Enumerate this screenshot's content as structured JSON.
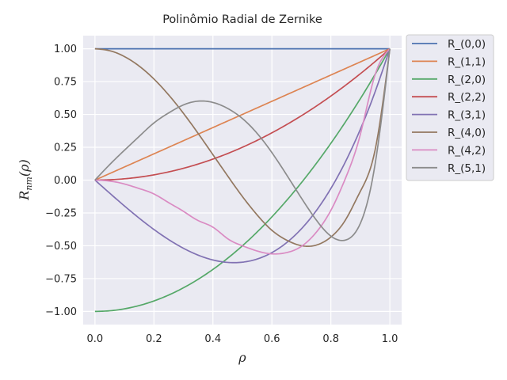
{
  "chart_data": {
    "type": "line",
    "title": "Polinômio Radial de Zernike",
    "xlabel": "ρ",
    "ylabel": "R_nm(ρ)",
    "xlim": [
      -0.04,
      1.04
    ],
    "ylim": [
      -1.1,
      1.1
    ],
    "xticks": [
      0.0,
      0.2,
      0.4,
      0.6,
      0.8,
      1.0
    ],
    "xtick_labels": [
      "0.0",
      "0.2",
      "0.4",
      "0.6",
      "0.8",
      "1.0"
    ],
    "yticks": [
      1.0,
      0.75,
      0.5,
      0.25,
      0.0,
      -0.25,
      -0.5,
      -0.75,
      -1.0
    ],
    "ytick_labels": [
      "1.00",
      "0.75",
      "0.50",
      "0.25",
      "0.00",
      "−0.25",
      "−0.50",
      "−0.75",
      "−1.00"
    ],
    "grid": true,
    "legend_position": "outside-right",
    "background": "#eaeaf2",
    "x": [
      0.0,
      0.05,
      0.1,
      0.15,
      0.2,
      0.25,
      0.3,
      0.35,
      0.4,
      0.45,
      0.5,
      0.55,
      0.6,
      0.65,
      0.7,
      0.75,
      0.8,
      0.85,
      0.9,
      0.95,
      1.0
    ],
    "series": [
      {
        "name": "R_(0,0)",
        "color": "#4c72b0",
        "values": [
          1,
          1,
          1,
          1,
          1,
          1,
          1,
          1,
          1,
          1,
          1,
          1,
          1,
          1,
          1,
          1,
          1,
          1,
          1,
          1,
          1
        ]
      },
      {
        "name": "R_(1,1)",
        "color": "#dd8452",
        "values": [
          0,
          0.05,
          0.1,
          0.15,
          0.2,
          0.25,
          0.3,
          0.35,
          0.4,
          0.45,
          0.5,
          0.55,
          0.6,
          0.65,
          0.7,
          0.75,
          0.8,
          0.85,
          0.9,
          0.95,
          1
        ]
      },
      {
        "name": "R_(2,0)",
        "color": "#55a868",
        "values": [
          -1,
          -0.995,
          -0.98,
          -0.955,
          -0.92,
          -0.875,
          -0.82,
          -0.755,
          -0.68,
          -0.595,
          -0.5,
          -0.395,
          -0.28,
          -0.155,
          -0.02,
          0.125,
          0.28,
          0.445,
          0.62,
          0.805,
          1
        ]
      },
      {
        "name": "R_(2,2)",
        "color": "#c44e52",
        "values": [
          0,
          0.0025,
          0.01,
          0.0225,
          0.04,
          0.0625,
          0.09,
          0.1225,
          0.16,
          0.2025,
          0.25,
          0.3025,
          0.36,
          0.4225,
          0.49,
          0.5625,
          0.64,
          0.7225,
          0.81,
          0.9025,
          1
        ]
      },
      {
        "name": "R_(3,1)",
        "color": "#8172b3",
        "values": [
          0,
          -0.0996,
          -0.197,
          -0.2899,
          -0.376,
          -0.4531,
          -0.519,
          -0.5714,
          -0.608,
          -0.6266,
          -0.625,
          -0.6009,
          -0.552,
          -0.4761,
          -0.371,
          -0.2344,
          -0.064,
          0.1424,
          0.387,
          0.6721,
          1
        ]
      },
      {
        "name": "R_(4,0)",
        "color": "#937860",
        "values": [
          1,
          0.9851,
          0.9406,
          0.8679,
          0.7696,
          0.6484,
          0.5086,
          0.3551,
          0.1936,
          0.0318,
          -0.125,
          -0.2654,
          -0.3824,
          -0.4571,
          -0.4994,
          -0.4954,
          -0.4336,
          -0.3014,
          -0.0854,
          0.229,
          1
        ]
      },
      {
        "name": "R_(4,2)",
        "color": "#da8bc3",
        "values": [
          0,
          -0.0074,
          -0.0296,
          -0.0643,
          -0.1056,
          -0.1719,
          -0.2376,
          -0.3082,
          -0.3584,
          -0.4462,
          -0.5,
          -0.5399,
          -0.5616,
          -0.5519,
          -0.5047,
          -0.3984,
          -0.2304,
          0.0165,
          0.3483,
          0.8028,
          1
        ]
      },
      {
        "name": "R_(5,1)",
        "color": "#8c8c8c",
        "values": [
          0,
          0.1182,
          0.2275,
          0.3329,
          0.4352,
          0.5117,
          0.5724,
          0.6011,
          0.5913,
          0.5457,
          0.4688,
          0.3555,
          0.2093,
          0.0397,
          -0.1368,
          -0.3024,
          -0.4262,
          -0.4564,
          -0.3296,
          0.1215,
          1
        ]
      }
    ]
  }
}
